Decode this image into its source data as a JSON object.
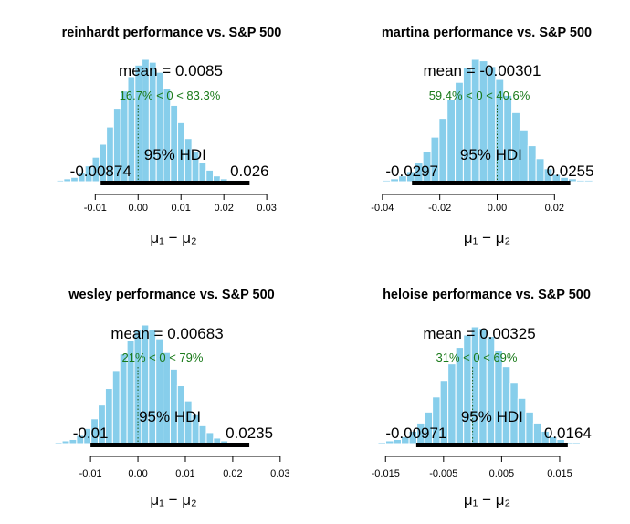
{
  "chart_data": [
    {
      "type": "bar",
      "title": "reinhardt performance vs. S&P 500",
      "mean_label": "mean = 0.0085",
      "mean": 0.0085,
      "compare_label": "16.7% < 0 < 83.3%",
      "compare_value": 0,
      "hdi_label": "95% HDI",
      "hdi_low": -0.00874,
      "hdi_low_label": "-0.00874",
      "hdi_high": 0.026,
      "hdi_high_label": "0.026",
      "xlabel": "μ₁ − μ₂",
      "xlim": [
        -0.0205,
        0.037
      ],
      "xticks": [
        -0.01,
        0.0,
        0.01,
        0.02,
        0.03
      ],
      "xtick_labels": [
        "-0.01",
        "0.00",
        "0.01",
        "0.02",
        "0.03"
      ],
      "bin_start": -0.019,
      "bin_width": 0.00166,
      "counts": [
        1,
        2,
        3,
        6,
        11,
        17,
        26,
        38,
        51,
        63,
        73,
        81,
        85,
        83,
        76,
        65,
        53,
        41,
        30,
        21,
        13,
        8,
        4,
        2,
        1,
        1
      ]
    },
    {
      "type": "bar",
      "title": "martina performance vs. S&P 500",
      "mean_label": "mean = -0.00301",
      "mean": -0.00301,
      "compare_label": "59.4% < 0 < 40.6%",
      "compare_value": 0,
      "hdi_label": "95% HDI",
      "hdi_low": -0.0297,
      "hdi_low_label": "-0.0297",
      "hdi_high": 0.0255,
      "hdi_high_label": "0.0255",
      "xlabel": "μ₁ − μ₂",
      "xlim": [
        -0.046,
        0.039
      ],
      "xticks": [
        -0.04,
        -0.02,
        0.0,
        0.02
      ],
      "xtick_labels": [
        "-0.04",
        "-0.02",
        "0.00",
        "0.02"
      ],
      "bin_start": -0.04,
      "bin_width": 0.00282,
      "counts": [
        1,
        2,
        4,
        7,
        13,
        21,
        31,
        44,
        57,
        69,
        79,
        85,
        84,
        80,
        71,
        60,
        48,
        36,
        25,
        16,
        9,
        5,
        3,
        2,
        1,
        1
      ]
    },
    {
      "type": "bar",
      "title": "wesley performance vs. S&P 500",
      "mean_label": "mean = 0.00683",
      "mean": 0.00683,
      "compare_label": "21% < 0 < 79%",
      "compare_value": 0,
      "hdi_label": "95% HDI",
      "hdi_low": -0.01,
      "hdi_low_label": "-0.01",
      "hdi_high": 0.0235,
      "hdi_high_label": "0.0235",
      "xlabel": "μ₁ − μ₂",
      "xlim": [
        -0.0185,
        0.0335
      ],
      "xticks": [
        -0.01,
        0.0,
        0.01,
        0.02,
        0.03
      ],
      "xtick_labels": [
        "-0.01",
        "0.00",
        "0.01",
        "0.02",
        "0.03"
      ],
      "bin_start": -0.0175,
      "bin_width": 0.00152,
      "counts": [
        1,
        2,
        3,
        6,
        11,
        18,
        28,
        40,
        53,
        65,
        75,
        83,
        86,
        83,
        76,
        66,
        54,
        42,
        31,
        21,
        13,
        8,
        4,
        2,
        1,
        1
      ]
    },
    {
      "type": "bar",
      "title": "heloise performance vs. S&P 500",
      "mean_label": "mean = 0.00325",
      "mean": 0.00325,
      "compare_label": "31% < 0 < 69%",
      "compare_value": 0,
      "hdi_label": "95% HDI",
      "hdi_low": -0.00971,
      "hdi_low_label": "-0.00971",
      "hdi_high": 0.0164,
      "hdi_high_label": "0.0164",
      "xlabel": "μ₁ − μ₂",
      "xlim": [
        -0.0185,
        0.0235
      ],
      "xticks": [
        -0.015,
        -0.005,
        0.005,
        0.015
      ],
      "xtick_labels": [
        "-0.015",
        "-0.005",
        "0.005",
        "0.015"
      ],
      "bin_start": -0.0163,
      "bin_width": 0.00134,
      "counts": [
        1,
        2,
        3,
        5,
        9,
        15,
        23,
        34,
        46,
        58,
        70,
        79,
        85,
        84,
        78,
        68,
        56,
        44,
        33,
        23,
        15,
        9,
        5,
        3,
        1,
        1
      ]
    }
  ],
  "colors": {
    "bar_fill": "#87ceeb",
    "bar_edge": "#ffffff",
    "hdi_line": "#000000",
    "compare_text": "#1a7a1a",
    "compare_line": "#1a5a1a"
  }
}
